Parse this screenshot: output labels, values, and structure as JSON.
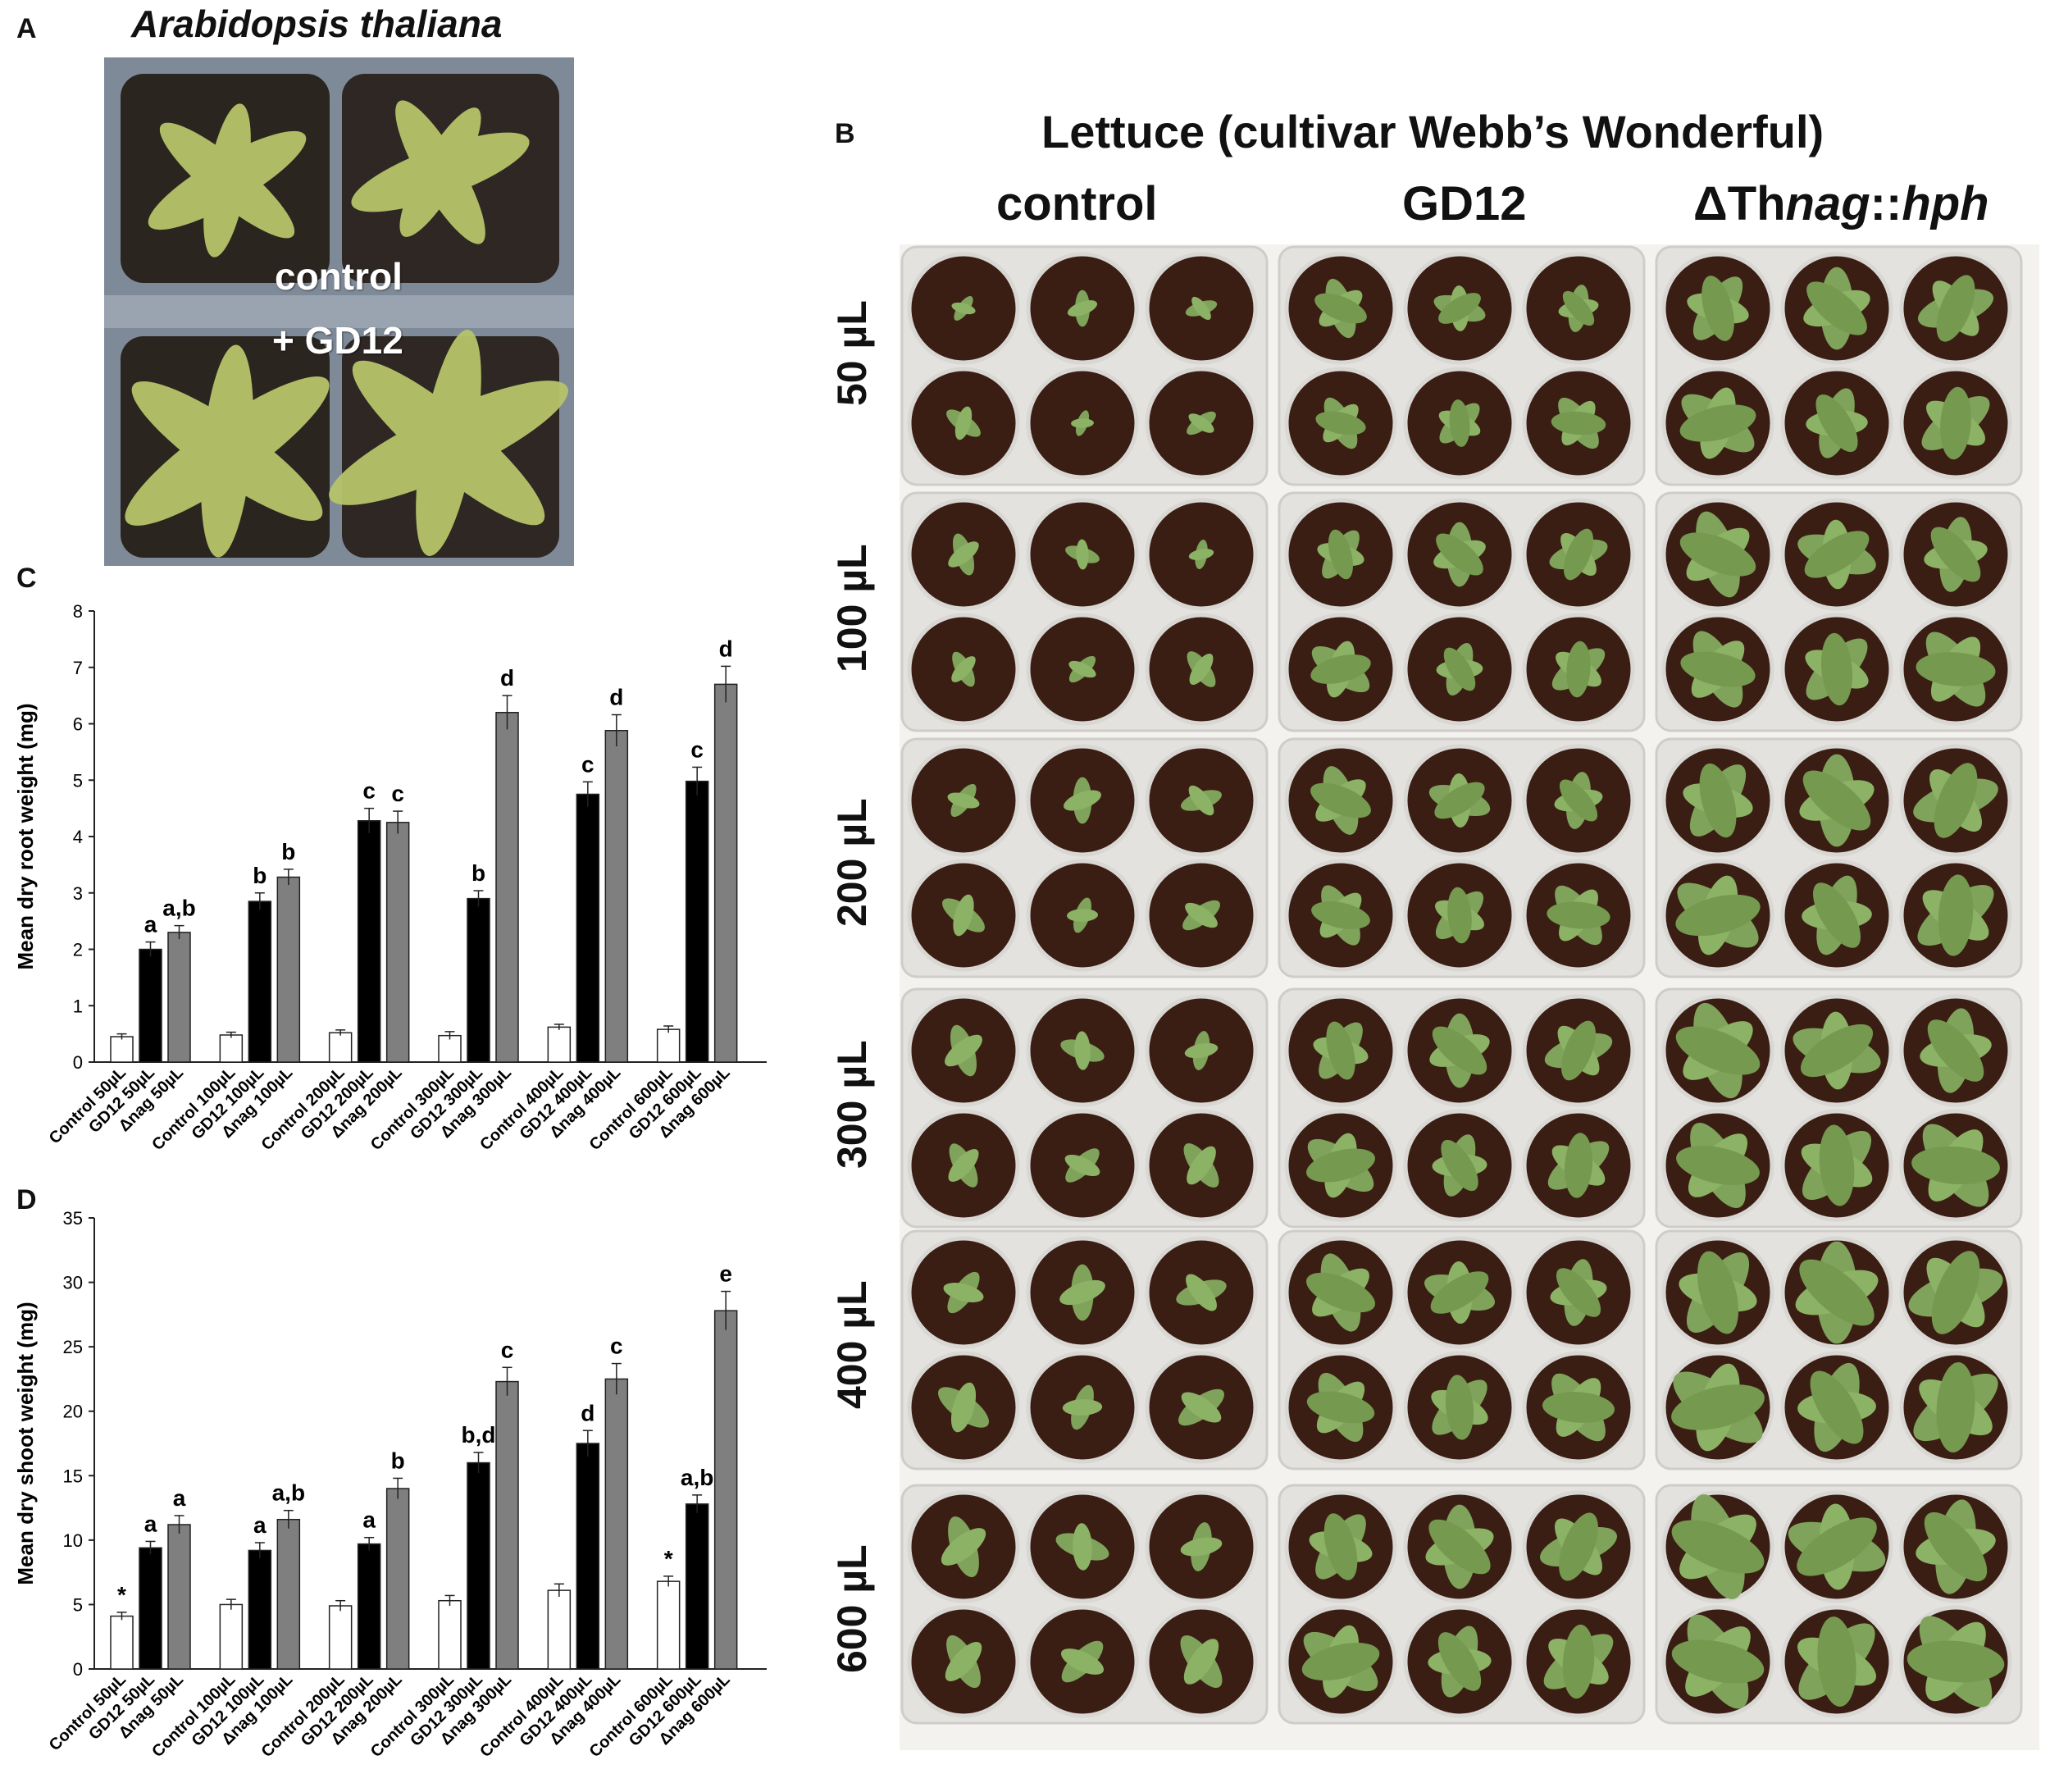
{
  "panel_a": {
    "label": "A",
    "title": "Arabidopsis thaliana",
    "label_top": "control",
    "label_bottom": "+ GD12"
  },
  "panel_b": {
    "label": "B",
    "title": "Lettuce (cultivar Webb’s Wonderful)",
    "columns": [
      {
        "prefix": "",
        "italic": "",
        "suffix": "control"
      },
      {
        "prefix": "",
        "italic": "",
        "suffix": "GD12"
      },
      {
        "prefix": "ΔTh",
        "italic": "nag",
        "mid": "::",
        "italic2": "hph"
      }
    ],
    "rows": [
      "50 µL",
      "100 µL",
      "200 µL",
      "300 µL",
      "400 µL",
      "600 µL"
    ]
  },
  "panel_c": {
    "label": "C"
  },
  "panel_d": {
    "label": "D"
  },
  "chart_data": [
    {
      "type": "bar",
      "panel": "C",
      "ylabel": "Mean dry root weight (mg)",
      "ylim": [
        0,
        8
      ],
      "yticks": [
        0,
        1,
        2,
        3,
        4,
        5,
        6,
        7,
        8
      ],
      "categories": [
        "Control 50µL",
        "GD12 50µL",
        "Δnag 50µL",
        "Control 100µL",
        "GD12 100µL",
        "Δnag 100µL",
        "Control 200µL",
        "GD12 200µL",
        "Δnag 200µL",
        "Control 300µL",
        "GD12 300µL",
        "Δnag 300µL",
        "Control 400µL",
        "GD12 400µL",
        "Δnag 400µL",
        "Control 600µL",
        "GD12 600µL",
        "Δnag 600µL"
      ],
      "values": [
        0.45,
        2.0,
        2.3,
        0.48,
        2.85,
        3.28,
        0.52,
        4.28,
        4.25,
        0.47,
        2.9,
        6.2,
        0.62,
        4.75,
        5.88,
        0.58,
        4.98,
        6.7
      ],
      "errors": [
        0.05,
        0.13,
        0.12,
        0.05,
        0.15,
        0.14,
        0.05,
        0.22,
        0.2,
        0.07,
        0.14,
        0.3,
        0.05,
        0.22,
        0.28,
        0.06,
        0.25,
        0.32
      ],
      "series_kind": [
        "control",
        "gd12",
        "nag"
      ],
      "annotations": [
        "",
        "a",
        "a,b",
        "",
        "b",
        "b",
        "",
        "c",
        "c",
        "",
        "b",
        "d",
        "",
        "c",
        "d",
        "",
        "c",
        "d"
      ]
    },
    {
      "type": "bar",
      "panel": "D",
      "ylabel": "Mean dry shoot weight (mg)",
      "ylim": [
        0,
        35
      ],
      "yticks": [
        0,
        5,
        10,
        15,
        20,
        25,
        30,
        35
      ],
      "categories": [
        "Control 50µL",
        "GD12 50µL",
        "Δnag 50µL",
        "Control 100µL",
        "GD12 100µL",
        "Δnag 100µL",
        "Control 200µL",
        "GD12 200µL",
        "Δnag 200µL",
        "Control 300µL",
        "GD12 300µL",
        "Δnag 300µL",
        "Control 400µL",
        "GD12 400µL",
        "Δnag 400µL",
        "Control 600µL",
        "GD12 600µL",
        "Δnag 600µL"
      ],
      "values": [
        4.1,
        9.4,
        11.2,
        5.0,
        9.2,
        11.6,
        4.9,
        9.7,
        14.0,
        5.3,
        16.0,
        22.3,
        6.1,
        17.5,
        22.5,
        6.8,
        12.8,
        27.8
      ],
      "errors": [
        0.3,
        0.5,
        0.7,
        0.4,
        0.6,
        0.7,
        0.4,
        0.5,
        0.8,
        0.4,
        0.8,
        1.1,
        0.5,
        1.0,
        1.2,
        0.4,
        0.7,
        1.5
      ],
      "series_kind": [
        "control",
        "gd12",
        "nag"
      ],
      "annotations": [
        "*",
        "a",
        "a",
        "",
        "a",
        "a,b",
        "",
        "a",
        "b",
        "",
        "b,d",
        "c",
        "",
        "d",
        "c",
        "*",
        "a,b",
        "e"
      ]
    }
  ]
}
